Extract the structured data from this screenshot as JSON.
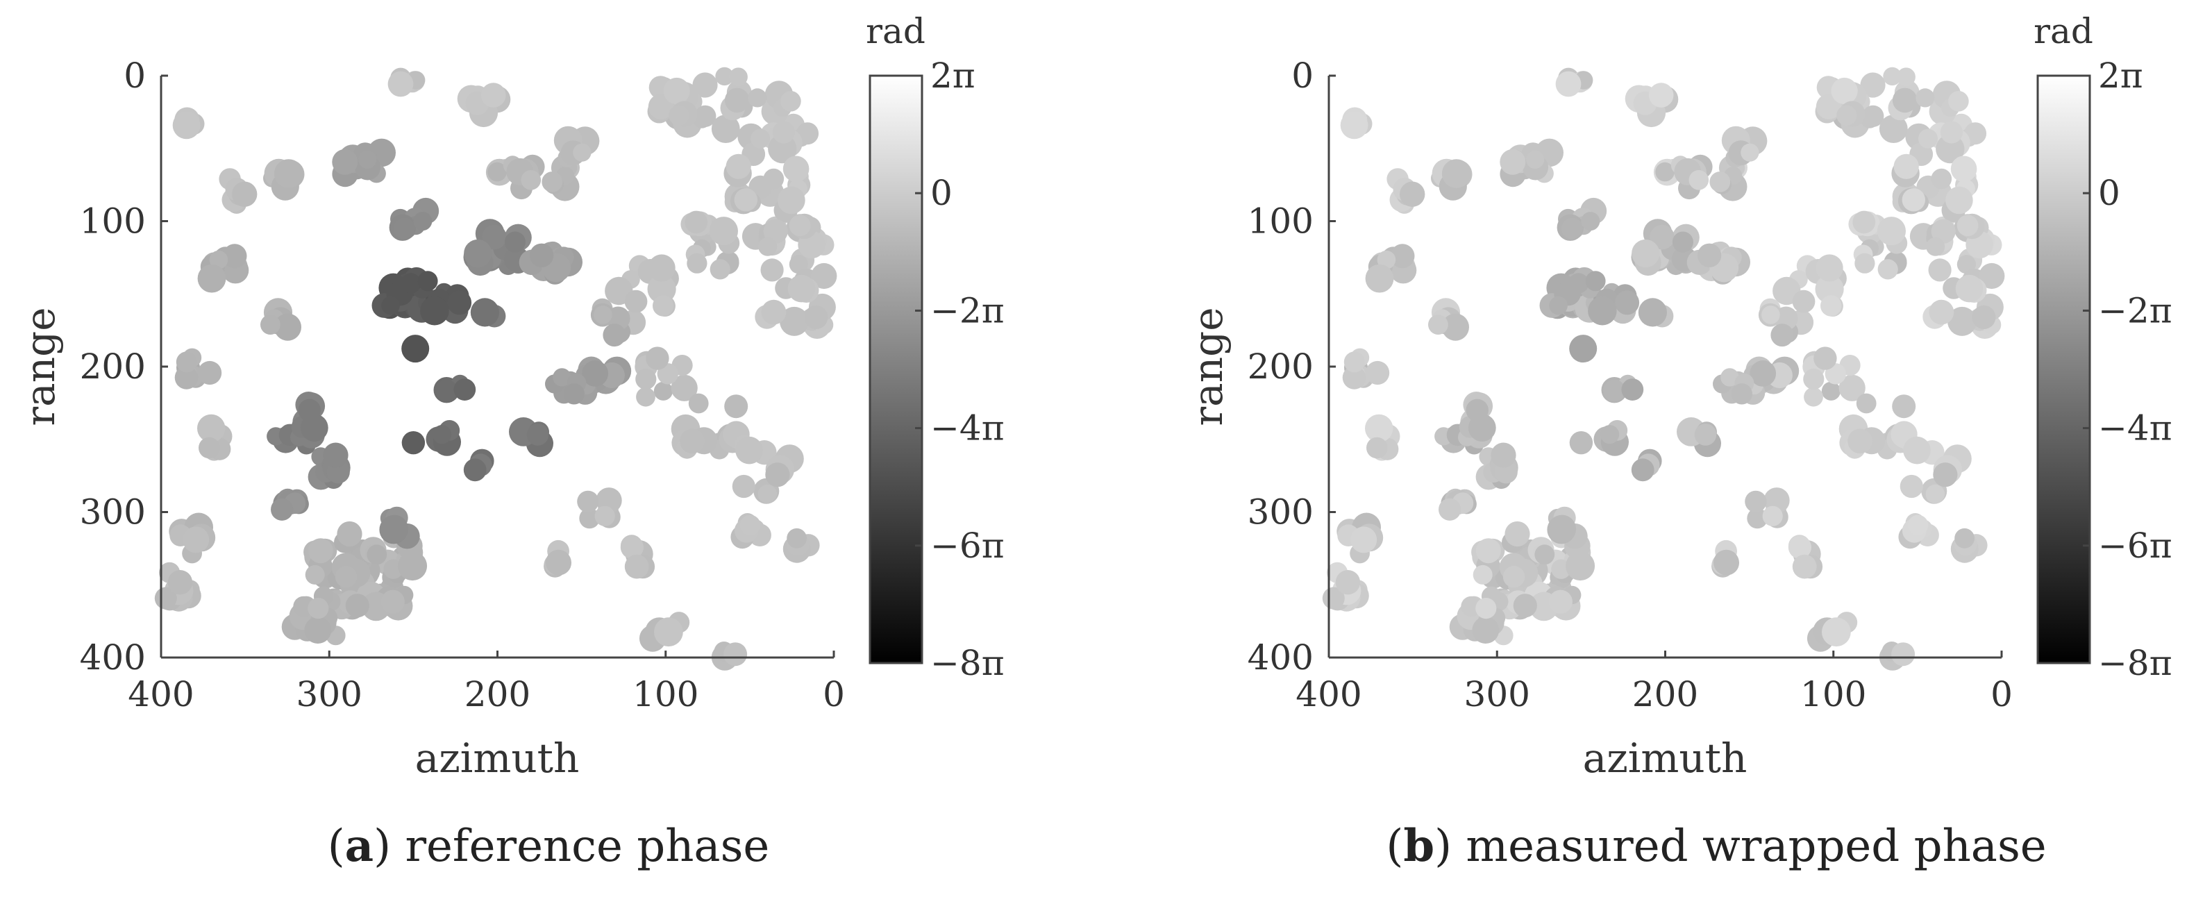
{
  "chart_data": [
    {
      "type": "scatter",
      "panel_letter": "a",
      "caption_text": "reference phase",
      "xlabel": "azimuth",
      "ylabel": "range",
      "xlim": [
        400,
        0
      ],
      "ylim": [
        400,
        0
      ],
      "x_ticks": [
        "400",
        "300",
        "200",
        "100",
        "0"
      ],
      "y_ticks": [
        "0",
        "100",
        "200",
        "300",
        "400"
      ],
      "colorbar": {
        "unit": "rad",
        "range": [
          "-8π",
          "2π"
        ],
        "ticks": [
          "2π",
          "0",
          "−2π",
          "−4π",
          "−6π",
          "−8π"
        ],
        "colormap": "gray"
      },
      "pattern": "reference"
    },
    {
      "type": "scatter",
      "panel_letter": "b",
      "caption_text": "measured wrapped phase",
      "xlabel": "azimuth",
      "ylabel": "range",
      "xlim": [
        400,
        0
      ],
      "ylim": [
        400,
        0
      ],
      "x_ticks": [
        "400",
        "300",
        "200",
        "100",
        "0"
      ],
      "y_ticks": [
        "0",
        "100",
        "200",
        "300",
        "400"
      ],
      "colorbar": {
        "unit": "rad",
        "range": [
          "-8π",
          "2π"
        ],
        "ticks": [
          "2π",
          "0",
          "−2π",
          "−4π",
          "−6π",
          "−8π"
        ],
        "colormap": "gray"
      },
      "pattern": "wrapped"
    }
  ]
}
